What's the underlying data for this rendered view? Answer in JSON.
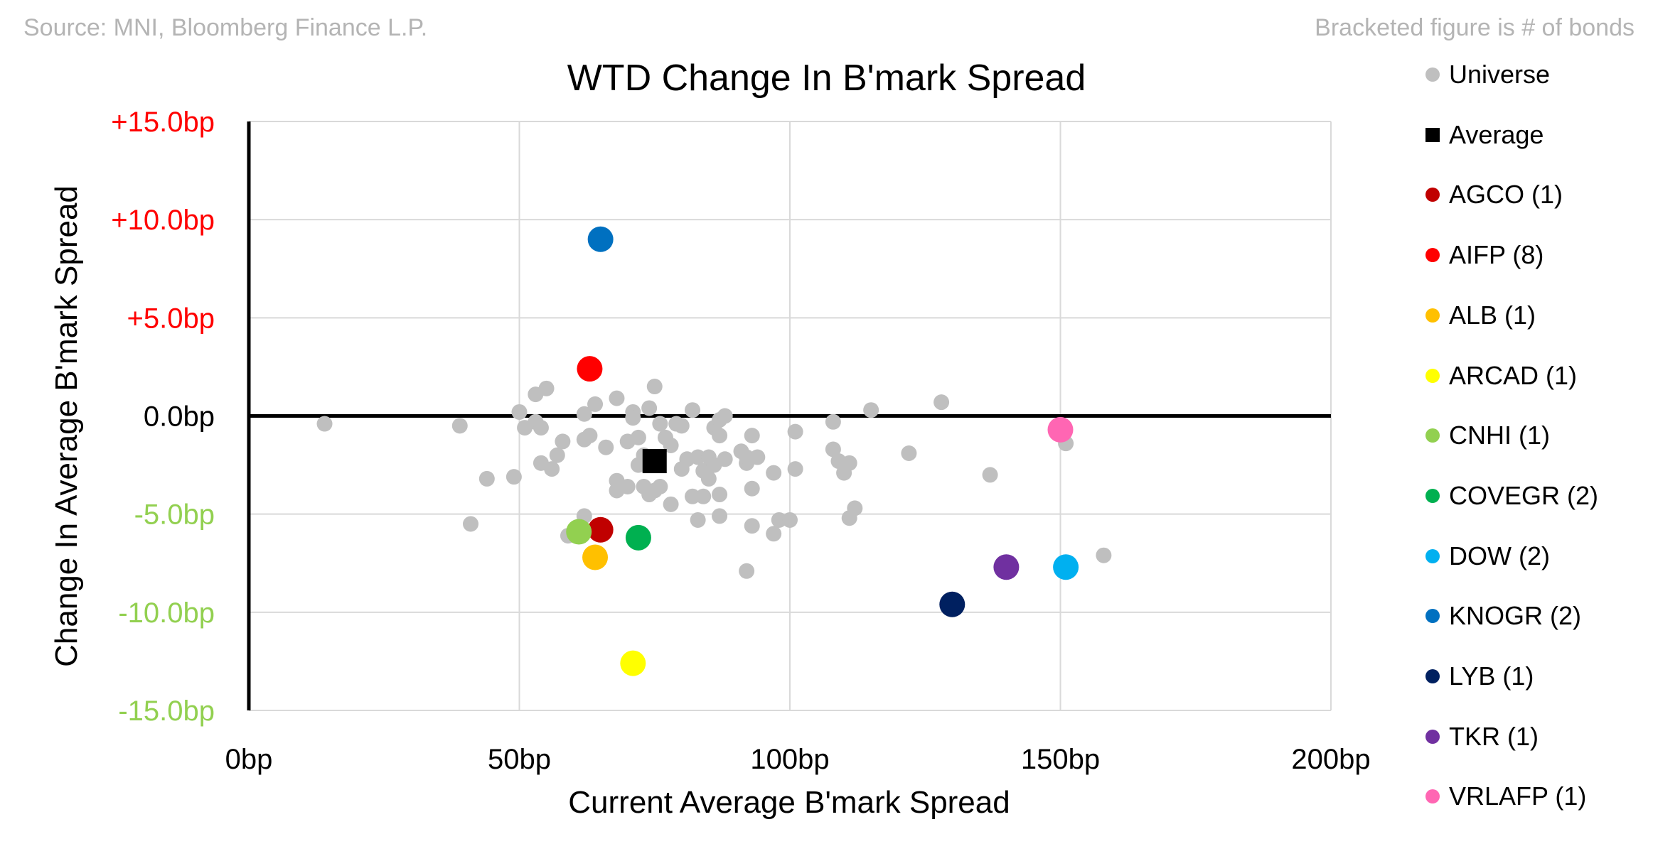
{
  "source_left": "Source: MNI, Bloomberg Finance L.P.",
  "source_right": "Bracketed figure is # of bonds",
  "chart_data": {
    "type": "scatter",
    "title": "WTD Change In B'mark Spread",
    "xlabel": "Current Average B'mark Spread",
    "ylabel": "Change In Average B'mark Spread",
    "xlim": [
      0,
      200
    ],
    "ylim": [
      -15,
      15
    ],
    "x_ticks": [
      0,
      50,
      100,
      150,
      200
    ],
    "x_tick_labels": [
      "0bp",
      "50bp",
      "100bp",
      "150bp",
      "200bp"
    ],
    "y_ticks": [
      15,
      10,
      5,
      0,
      -5,
      -10,
      -15
    ],
    "y_tick_labels": [
      "+15.0bp",
      "+10.0bp",
      "+5.0bp",
      "0.0bp",
      "-5.0bp",
      "-10.0bp",
      "-15.0bp"
    ],
    "y_tick_colors": [
      "#ff0000",
      "#ff0000",
      "#ff0000",
      "#000000",
      "#92d050",
      "#92d050",
      "#92d050"
    ],
    "grid": true,
    "legend_position": "right",
    "universe": {
      "name": "Universe",
      "color": "#bfbfbf",
      "points": [
        [
          14,
          -0.4
        ],
        [
          39,
          -0.5
        ],
        [
          41,
          -5.5
        ],
        [
          44,
          -3.2
        ],
        [
          49,
          -3.1
        ],
        [
          50,
          0.2
        ],
        [
          51,
          -0.6
        ],
        [
          53,
          -0.3
        ],
        [
          53,
          1.1
        ],
        [
          54,
          -0.6
        ],
        [
          55,
          1.4
        ],
        [
          54,
          -2.4
        ],
        [
          56,
          -2.7
        ],
        [
          57,
          -2.0
        ],
        [
          58,
          -1.3
        ],
        [
          59,
          -6.1
        ],
        [
          62,
          -5.1
        ],
        [
          62,
          -1.2
        ],
        [
          62,
          0.1
        ],
        [
          63,
          -1.0
        ],
        [
          64,
          0.6
        ],
        [
          66,
          -1.6
        ],
        [
          68,
          0.9
        ],
        [
          68,
          -3.3
        ],
        [
          68,
          -3.8
        ],
        [
          70,
          -3.6
        ],
        [
          70,
          -1.3
        ],
        [
          71,
          0.2
        ],
        [
          71,
          -0.1
        ],
        [
          72,
          -1.1
        ],
        [
          72,
          -2.5
        ],
        [
          73,
          -3.6
        ],
        [
          73,
          -2.0
        ],
        [
          74,
          0.4
        ],
        [
          74,
          -4.0
        ],
        [
          75,
          -3.8
        ],
        [
          75,
          1.5
        ],
        [
          76,
          -0.4
        ],
        [
          76,
          -3.6
        ],
        [
          77,
          -1.1
        ],
        [
          78,
          -4.5
        ],
        [
          78,
          -1.5
        ],
        [
          79,
          -0.4
        ],
        [
          80,
          -0.5
        ],
        [
          80,
          -2.7
        ],
        [
          81,
          -2.2
        ],
        [
          82,
          0.3
        ],
        [
          82,
          -4.1
        ],
        [
          83,
          -2.1
        ],
        [
          83,
          -5.3
        ],
        [
          84,
          -4.1
        ],
        [
          84,
          -2.8
        ],
        [
          85,
          -3.2
        ],
        [
          85,
          -2.1
        ],
        [
          86,
          -0.6
        ],
        [
          86,
          -2.5
        ],
        [
          87,
          -0.2
        ],
        [
          87,
          -1.0
        ],
        [
          87,
          -4.0
        ],
        [
          87,
          -5.1
        ],
        [
          88,
          -2.2
        ],
        [
          88,
          0.0
        ],
        [
          91,
          -1.8
        ],
        [
          92,
          -7.9
        ],
        [
          92,
          -2.4
        ],
        [
          92,
          -2.1
        ],
        [
          93,
          -5.6
        ],
        [
          93,
          -1.0
        ],
        [
          93,
          -3.7
        ],
        [
          94,
          -2.1
        ],
        [
          97,
          -2.9
        ],
        [
          97,
          -6.0
        ],
        [
          98,
          -5.3
        ],
        [
          100,
          -5.3
        ],
        [
          101,
          -0.8
        ],
        [
          101,
          -2.7
        ],
        [
          108,
          -0.3
        ],
        [
          108,
          -1.7
        ],
        [
          109,
          -2.3
        ],
        [
          110,
          -2.9
        ],
        [
          111,
          -2.4
        ],
        [
          111,
          -5.2
        ],
        [
          112,
          -4.7
        ],
        [
          115,
          0.3
        ],
        [
          122,
          -1.9
        ],
        [
          128,
          0.7
        ],
        [
          137,
          -3.0
        ],
        [
          151,
          -1.4
        ],
        [
          158,
          -7.1
        ]
      ]
    },
    "average": {
      "name": "Average",
      "x": 75,
      "y": -2.3,
      "color": "#000000"
    },
    "series": [
      {
        "name": "AGCO",
        "count": 1,
        "color": "#c00000",
        "x": 65,
        "y": -5.8
      },
      {
        "name": "AIFP",
        "count": 8,
        "color": "#ff0000",
        "x": 63,
        "y": 2.4
      },
      {
        "name": "ALB",
        "count": 1,
        "color": "#ffc000",
        "x": 64,
        "y": -7.2
      },
      {
        "name": "ARCAD",
        "count": 1,
        "color": "#ffff00",
        "x": 71,
        "y": -12.6
      },
      {
        "name": "CNHI",
        "count": 1,
        "color": "#92d050",
        "x": 61,
        "y": -5.9
      },
      {
        "name": "COVEGR",
        "count": 2,
        "color": "#00b050",
        "x": 72,
        "y": -6.2
      },
      {
        "name": "DOW",
        "count": 2,
        "color": "#00b0f0",
        "x": 151,
        "y": -7.7
      },
      {
        "name": "KNOGR",
        "count": 2,
        "color": "#0070c0",
        "x": 65,
        "y": 9.0
      },
      {
        "name": "LYB",
        "count": 1,
        "color": "#002060",
        "x": 130,
        "y": -9.6
      },
      {
        "name": "TKR",
        "count": 1,
        "color": "#7030a0",
        "x": 140,
        "y": -7.7
      },
      {
        "name": "VRLAFP",
        "count": 1,
        "color": "#ff66b3",
        "x": 150,
        "y": -0.7
      }
    ]
  },
  "legend": [
    {
      "label": "Universe",
      "color": "#bfbfbf",
      "shape": "circle"
    },
    {
      "label": "Average",
      "color": "#000000",
      "shape": "square"
    },
    {
      "label": "AGCO  (1)",
      "color": "#c00000",
      "shape": "circle"
    },
    {
      "label": "AIFP  (8)",
      "color": "#ff0000",
      "shape": "circle"
    },
    {
      "label": "ALB  (1)",
      "color": "#ffc000",
      "shape": "circle"
    },
    {
      "label": "ARCAD  (1)",
      "color": "#ffff00",
      "shape": "circle"
    },
    {
      "label": "CNHI  (1)",
      "color": "#92d050",
      "shape": "circle"
    },
    {
      "label": "COVEGR  (2)",
      "color": "#00b050",
      "shape": "circle"
    },
    {
      "label": "DOW  (2)",
      "color": "#00b0f0",
      "shape": "circle"
    },
    {
      "label": "KNOGR  (2)",
      "color": "#0070c0",
      "shape": "circle"
    },
    {
      "label": "LYB  (1)",
      "color": "#002060",
      "shape": "circle"
    },
    {
      "label": "TKR  (1)",
      "color": "#7030a0",
      "shape": "circle"
    },
    {
      "label": "VRLAFP  (1)",
      "color": "#ff66b3",
      "shape": "circle"
    }
  ]
}
